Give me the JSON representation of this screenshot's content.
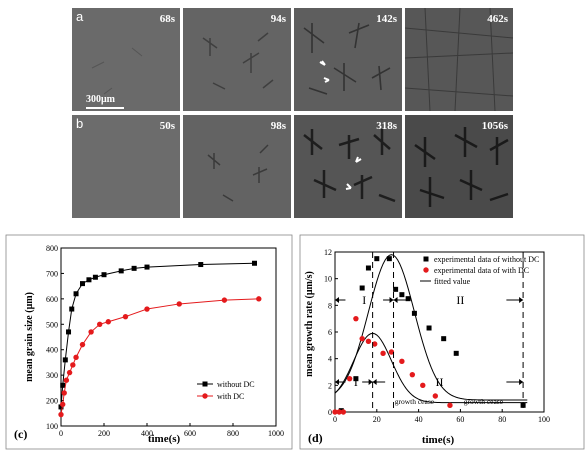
{
  "micrographs": {
    "row_a": {
      "label": "a",
      "times": [
        "68s",
        "94s",
        "142s",
        "462s"
      ]
    },
    "row_b": {
      "label": "b",
      "times": [
        "50s",
        "98s",
        "318s",
        "1056s"
      ]
    },
    "scale_bar": "300μm"
  },
  "chart_data": [
    {
      "type": "line",
      "panel": "(c)",
      "xlabel": "time(s)",
      "ylabel": "mean grain size (μm)",
      "xlim": [
        0,
        1000
      ],
      "ylim": [
        100,
        800
      ],
      "xticks": [
        0,
        200,
        400,
        600,
        800,
        1000
      ],
      "yticks": [
        100,
        200,
        300,
        400,
        500,
        600,
        700,
        800
      ],
      "legend_position": "bottom-right",
      "series": [
        {
          "name": "without DC",
          "color": "#000000",
          "marker": "square",
          "x": [
            0,
            8,
            20,
            35,
            50,
            70,
            100,
            130,
            160,
            200,
            280,
            340,
            400,
            650,
            900
          ],
          "y": [
            175,
            260,
            360,
            470,
            560,
            620,
            660,
            675,
            685,
            695,
            710,
            720,
            725,
            735,
            740
          ]
        },
        {
          "name": "with DC",
          "color": "#e41a1c",
          "marker": "circle",
          "x": [
            0,
            8,
            15,
            25,
            40,
            55,
            70,
            100,
            140,
            180,
            220,
            300,
            400,
            550,
            760,
            920
          ],
          "y": [
            145,
            185,
            230,
            280,
            310,
            340,
            370,
            420,
            470,
            500,
            510,
            530,
            560,
            580,
            595,
            600
          ]
        }
      ]
    },
    {
      "type": "scatter",
      "panel": "(d)",
      "xlabel": "time(s)",
      "ylabel": "mean growth rate (μm/s)",
      "xlim": [
        0,
        100
      ],
      "ylim": [
        0,
        12
      ],
      "xticks": [
        0,
        20,
        40,
        60,
        80,
        100
      ],
      "yticks": [
        0,
        2,
        4,
        6,
        8,
        10,
        12
      ],
      "legend_position": "top-right",
      "series": [
        {
          "name": "experimental data of without DC",
          "color": "#000000",
          "marker": "square",
          "x": [
            3,
            10,
            13,
            16,
            20,
            26,
            29,
            32,
            35,
            38,
            45,
            52,
            58,
            90
          ],
          "y": [
            0.1,
            2.5,
            9.3,
            10.8,
            11.5,
            11.5,
            9.2,
            8.8,
            8.5,
            7.4,
            6.3,
            5.5,
            4.4,
            0.5
          ]
        },
        {
          "name": "experimental data of with DC",
          "color": "#e41a1c",
          "marker": "circle",
          "x": [
            0,
            2,
            4,
            7,
            10,
            13,
            16,
            19,
            23,
            27,
            32,
            37,
            42,
            48,
            55
          ],
          "y": [
            0,
            0,
            0,
            2.5,
            7.0,
            5.5,
            5.3,
            5.1,
            4.4,
            4.5,
            3.8,
            2.8,
            2.0,
            1.2,
            0.5
          ]
        },
        {
          "name": "fitted value",
          "color": "#000000",
          "line": true
        }
      ],
      "annotations": {
        "region_1": "I",
        "region_2": "II",
        "growth_cease_1": "growth cease",
        "growth_cease_2": "growth cease",
        "dashed_lines_x": [
          0,
          18,
          28,
          90
        ]
      }
    }
  ]
}
